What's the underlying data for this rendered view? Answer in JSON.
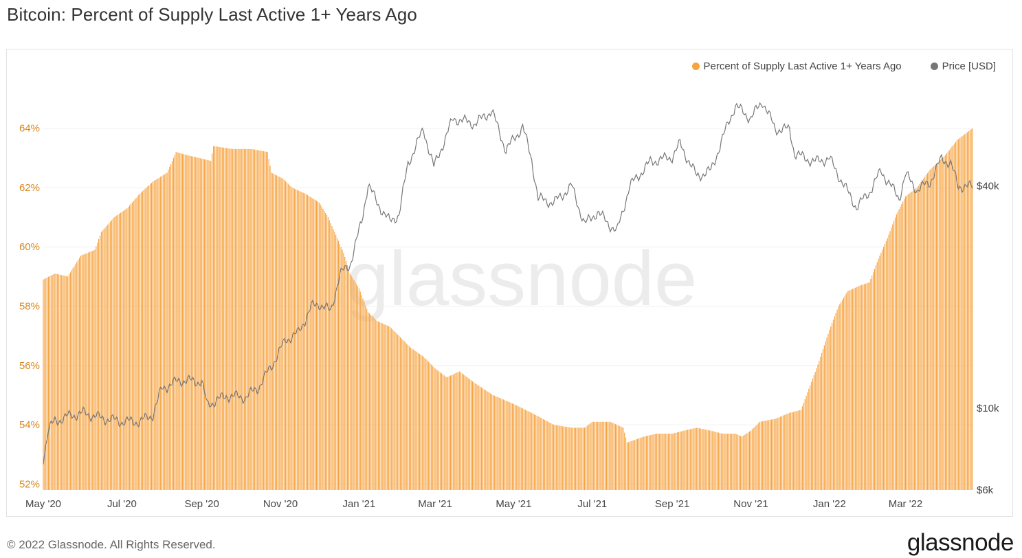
{
  "title": "Bitcoin: Percent of Supply Last Active 1+ Years Ago",
  "footer": {
    "copyright": "© 2022 Glassnode. All Rights Reserved.",
    "brand": "glassnode"
  },
  "watermark": "glassnode",
  "colors": {
    "supply": "#F7A340",
    "price": "#777777",
    "left_axis_text": "#D9871E",
    "axis_text": "#444444",
    "grid": "#f0f0f0",
    "watermark": "#ececec"
  },
  "chart_data": {
    "type": "bar",
    "title": "Bitcoin: Percent of Supply Last Active 1+ Years Ago",
    "legend_position": "top-right",
    "grid": true,
    "x_range": [
      "2020-05-01",
      "2022-04-22"
    ],
    "x_ticks": [
      {
        "date": "2020-05-01",
        "label": "May '20"
      },
      {
        "date": "2020-07-01",
        "label": "Jul '20"
      },
      {
        "date": "2020-09-01",
        "label": "Sep '20"
      },
      {
        "date": "2020-11-01",
        "label": "Nov '20"
      },
      {
        "date": "2021-01-01",
        "label": "Jan '21"
      },
      {
        "date": "2021-03-01",
        "label": "Mar '21"
      },
      {
        "date": "2021-05-01",
        "label": "May '21"
      },
      {
        "date": "2021-07-01",
        "label": "Jul '21"
      },
      {
        "date": "2021-09-01",
        "label": "Sep '21"
      },
      {
        "date": "2021-11-01",
        "label": "Nov '21"
      },
      {
        "date": "2022-01-01",
        "label": "Jan '22"
      },
      {
        "date": "2022-03-01",
        "label": "Mar '22"
      }
    ],
    "left_axis": {
      "unit": "%",
      "range": [
        51.8,
        65.8
      ],
      "ticks": [
        {
          "value": 52,
          "label": "52%"
        },
        {
          "value": 54,
          "label": "54%"
        },
        {
          "value": 56,
          "label": "56%"
        },
        {
          "value": 58,
          "label": "58%"
        },
        {
          "value": 60,
          "label": "60%"
        },
        {
          "value": 62,
          "label": "62%"
        },
        {
          "value": 64,
          "label": "64%"
        }
      ]
    },
    "right_axis": {
      "scale": "log",
      "unit": "USD",
      "range": [
        6000,
        80000
      ],
      "ticks": [
        {
          "value": 6000,
          "label": "$6k"
        },
        {
          "value": 10000,
          "label": "$10k"
        },
        {
          "value": 40000,
          "label": "$40k"
        }
      ]
    },
    "series": [
      {
        "name": "Percent of Supply Last Active 1+ Years Ago",
        "type": "bar",
        "axis": "left",
        "unit": "%",
        "points": [
          [
            "2020-05-01",
            58.9
          ],
          [
            "2020-05-10",
            59.1
          ],
          [
            "2020-05-20",
            59.0
          ],
          [
            "2020-05-30",
            59.7
          ],
          [
            "2020-06-10",
            59.9
          ],
          [
            "2020-06-15",
            60.5
          ],
          [
            "2020-06-25",
            61.0
          ],
          [
            "2020-07-05",
            61.3
          ],
          [
            "2020-07-15",
            61.8
          ],
          [
            "2020-07-25",
            62.2
          ],
          [
            "2020-08-05",
            62.5
          ],
          [
            "2020-08-12",
            63.2
          ],
          [
            "2020-08-20",
            63.1
          ],
          [
            "2020-08-30",
            63.0
          ],
          [
            "2020-09-08",
            62.9
          ],
          [
            "2020-09-10",
            63.4
          ],
          [
            "2020-09-25",
            63.3
          ],
          [
            "2020-10-10",
            63.3
          ],
          [
            "2020-10-22",
            63.2
          ],
          [
            "2020-10-25",
            62.5
          ],
          [
            "2020-11-03",
            62.3
          ],
          [
            "2020-11-10",
            62.0
          ],
          [
            "2020-11-20",
            61.8
          ],
          [
            "2020-12-01",
            61.5
          ],
          [
            "2020-12-08",
            61.0
          ],
          [
            "2020-12-15",
            60.3
          ],
          [
            "2020-12-20",
            59.8
          ],
          [
            "2020-12-25",
            59.1
          ],
          [
            "2021-01-01",
            58.6
          ],
          [
            "2021-01-08",
            57.8
          ],
          [
            "2021-01-15",
            57.5
          ],
          [
            "2021-01-25",
            57.3
          ],
          [
            "2021-02-01",
            57.0
          ],
          [
            "2021-02-10",
            56.6
          ],
          [
            "2021-02-20",
            56.3
          ],
          [
            "2021-03-01",
            55.9
          ],
          [
            "2021-03-10",
            55.6
          ],
          [
            "2021-03-20",
            55.8
          ],
          [
            "2021-04-01",
            55.4
          ],
          [
            "2021-04-15",
            55.0
          ],
          [
            "2021-05-01",
            54.7
          ],
          [
            "2021-05-15",
            54.4
          ],
          [
            "2021-06-01",
            54.0
          ],
          [
            "2021-06-15",
            53.9
          ],
          [
            "2021-06-25",
            53.9
          ],
          [
            "2021-07-01",
            54.1
          ],
          [
            "2021-07-15",
            54.1
          ],
          [
            "2021-07-25",
            53.9
          ],
          [
            "2021-07-28",
            53.4
          ],
          [
            "2021-08-10",
            53.6
          ],
          [
            "2021-08-20",
            53.7
          ],
          [
            "2021-09-01",
            53.7
          ],
          [
            "2021-09-10",
            53.8
          ],
          [
            "2021-09-20",
            53.9
          ],
          [
            "2021-10-01",
            53.8
          ],
          [
            "2021-10-10",
            53.7
          ],
          [
            "2021-10-20",
            53.7
          ],
          [
            "2021-10-25",
            53.6
          ],
          [
            "2021-11-01",
            53.8
          ],
          [
            "2021-11-08",
            54.1
          ],
          [
            "2021-11-20",
            54.2
          ],
          [
            "2021-12-01",
            54.4
          ],
          [
            "2021-12-10",
            54.5
          ],
          [
            "2021-12-15",
            55.1
          ],
          [
            "2021-12-22",
            55.9
          ],
          [
            "2022-01-01",
            57.2
          ],
          [
            "2022-01-08",
            58.0
          ],
          [
            "2022-01-15",
            58.5
          ],
          [
            "2022-01-25",
            58.7
          ],
          [
            "2022-02-01",
            58.8
          ],
          [
            "2022-02-08",
            59.6
          ],
          [
            "2022-02-15",
            60.3
          ],
          [
            "2022-02-22",
            61.1
          ],
          [
            "2022-03-01",
            61.7
          ],
          [
            "2022-03-10",
            62.0
          ],
          [
            "2022-03-20",
            62.6
          ],
          [
            "2022-04-01",
            63.1
          ],
          [
            "2022-04-10",
            63.6
          ],
          [
            "2022-04-22",
            64.0
          ]
        ]
      },
      {
        "name": "Price [USD]",
        "type": "line",
        "axis": "right",
        "unit": "USD",
        "points": [
          [
            "2020-05-01",
            7300
          ],
          [
            "2020-05-05",
            8800
          ],
          [
            "2020-05-10",
            9200
          ],
          [
            "2020-05-20",
            9500
          ],
          [
            "2020-06-01",
            9700
          ],
          [
            "2020-06-15",
            9400
          ],
          [
            "2020-07-01",
            9200
          ],
          [
            "2020-07-15",
            9200
          ],
          [
            "2020-07-25",
            9600
          ],
          [
            "2020-08-01",
            11300
          ],
          [
            "2020-08-15",
            11900
          ],
          [
            "2020-09-01",
            11800
          ],
          [
            "2020-09-05",
            10200
          ],
          [
            "2020-09-20",
            10800
          ],
          [
            "2020-10-05",
            10700
          ],
          [
            "2020-10-15",
            11400
          ],
          [
            "2020-10-25",
            13000
          ],
          [
            "2020-11-05",
            15300
          ],
          [
            "2020-11-15",
            16000
          ],
          [
            "2020-11-25",
            18800
          ],
          [
            "2020-12-01",
            19200
          ],
          [
            "2020-12-10",
            18300
          ],
          [
            "2020-12-17",
            23000
          ],
          [
            "2020-12-25",
            24500
          ],
          [
            "2021-01-03",
            32000
          ],
          [
            "2021-01-08",
            40500
          ],
          [
            "2021-01-15",
            36000
          ],
          [
            "2021-01-25",
            32000
          ],
          [
            "2021-02-01",
            33500
          ],
          [
            "2021-02-08",
            46000
          ],
          [
            "2021-02-20",
            57000
          ],
          [
            "2021-02-28",
            45000
          ],
          [
            "2021-03-10",
            55000
          ],
          [
            "2021-03-15",
            61000
          ],
          [
            "2021-04-01",
            59000
          ],
          [
            "2021-04-14",
            64000
          ],
          [
            "2021-04-25",
            50000
          ],
          [
            "2021-05-08",
            58000
          ],
          [
            "2021-05-15",
            47000
          ],
          [
            "2021-05-20",
            37000
          ],
          [
            "2021-06-01",
            36000
          ],
          [
            "2021-06-15",
            40000
          ],
          [
            "2021-06-25",
            31500
          ],
          [
            "2021-07-05",
            34000
          ],
          [
            "2021-07-20",
            30000
          ],
          [
            "2021-07-30",
            40000
          ],
          [
            "2021-08-15",
            46500
          ],
          [
            "2021-09-01",
            48000
          ],
          [
            "2021-09-07",
            52000
          ],
          [
            "2021-09-20",
            42500
          ],
          [
            "2021-10-01",
            44000
          ],
          [
            "2021-10-15",
            60000
          ],
          [
            "2021-10-20",
            66000
          ],
          [
            "2021-11-01",
            61000
          ],
          [
            "2021-11-10",
            68000
          ],
          [
            "2021-11-20",
            57000
          ],
          [
            "2021-12-01",
            57000
          ],
          [
            "2021-12-05",
            49000
          ],
          [
            "2021-12-20",
            46500
          ],
          [
            "2022-01-01",
            47500
          ],
          [
            "2022-01-10",
            41500
          ],
          [
            "2022-01-22",
            35000
          ],
          [
            "2022-02-01",
            38500
          ],
          [
            "2022-02-10",
            44000
          ],
          [
            "2022-02-24",
            37000
          ],
          [
            "2022-03-01",
            43000
          ],
          [
            "2022-03-10",
            39000
          ],
          [
            "2022-03-20",
            41000
          ],
          [
            "2022-03-29",
            47500
          ],
          [
            "2022-04-05",
            46000
          ],
          [
            "2022-04-11",
            40000
          ],
          [
            "2022-04-22",
            39800
          ]
        ]
      }
    ]
  }
}
